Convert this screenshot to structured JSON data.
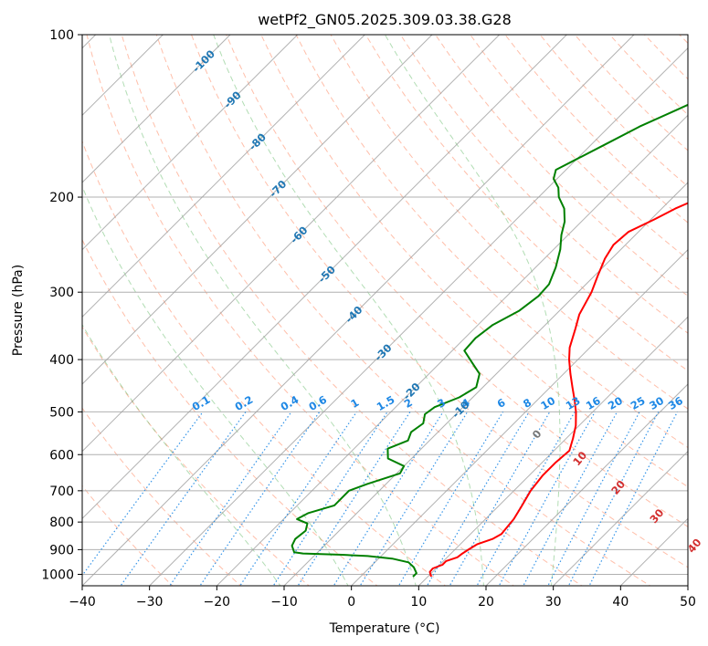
{
  "chart_data": {
    "type": "line",
    "title": "wetPf2_GN05.2025.309.03.38.G28",
    "xlabel": "Temperature (°C)",
    "ylabel": "Pressure (hPa)",
    "xlim": [
      -40,
      50
    ],
    "ylim": [
      1050,
      100
    ],
    "y_scale": "log",
    "grid": true,
    "x_ticks": [
      "−40",
      "−30",
      "−20",
      "−10",
      "0",
      "10",
      "20",
      "30",
      "40",
      "50"
    ],
    "y_ticks": [
      "100",
      "200",
      "300",
      "400",
      "500",
      "600",
      "700",
      "800",
      "900",
      "1000"
    ],
    "colors": {
      "temperature": "#ff0000",
      "dewpoint": "#008000",
      "isotherm_label": "#1f77b4",
      "mixing_ratio": "#1e88e5",
      "dry_adiabat": "#ff8a65",
      "moist_adiabat": "#66bb6a",
      "theta_label": "#d32f2f"
    },
    "series": [
      {
        "key": "temperature",
        "points": [
          [
            10.5,
            1010
          ],
          [
            9.6,
            990
          ],
          [
            9.5,
            975
          ],
          [
            10.4,
            960
          ],
          [
            10.4,
            945
          ],
          [
            11.5,
            930
          ],
          [
            11.7,
            915
          ],
          [
            12.0,
            900
          ],
          [
            12.5,
            880
          ],
          [
            14.0,
            860
          ],
          [
            14.6,
            842
          ],
          [
            14.4,
            815
          ],
          [
            14.2,
            790
          ],
          [
            13.5,
            750
          ],
          [
            12.5,
            700
          ],
          [
            12.0,
            655
          ],
          [
            12.0,
            620
          ],
          [
            12.3,
            590
          ],
          [
            11.0,
            560
          ],
          [
            9.5,
            530
          ],
          [
            7.5,
            500
          ],
          [
            5.5,
            475
          ],
          [
            3.3,
            450
          ],
          [
            1.0,
            425
          ],
          [
            -1.3,
            400
          ],
          [
            -3.0,
            380
          ],
          [
            -5.0,
            350
          ],
          [
            -6.5,
            330
          ],
          [
            -8.0,
            300
          ],
          [
            -9.5,
            280
          ],
          [
            -11.0,
            260
          ],
          [
            -11.8,
            245
          ],
          [
            -11.5,
            232
          ],
          [
            -9.5,
            220
          ],
          [
            -8.0,
            210
          ],
          [
            -5.8,
            200
          ],
          [
            -3.5,
            190
          ],
          [
            -2.0,
            182
          ],
          [
            -1.2,
            170
          ],
          [
            -0.3,
            160
          ],
          [
            0.5,
            150
          ],
          [
            2.0,
            137
          ],
          [
            3.8,
            125
          ],
          [
            5.5,
            117
          ],
          [
            6.5,
            110
          ],
          [
            7.5,
            104
          ],
          [
            8.0,
            100
          ]
        ]
      },
      {
        "key": "dewpoint",
        "points": [
          [
            7.8,
            1010
          ],
          [
            7.8,
            995
          ],
          [
            6.5,
            970
          ],
          [
            5.0,
            950
          ],
          [
            2.0,
            935
          ],
          [
            -2.0,
            925
          ],
          [
            -6.0,
            920
          ],
          [
            -12.0,
            915
          ],
          [
            -13.5,
            910
          ],
          [
            -14.8,
            885
          ],
          [
            -15.3,
            860
          ],
          [
            -15.0,
            830
          ],
          [
            -15.8,
            805
          ],
          [
            -18.0,
            790
          ],
          [
            -17.2,
            770
          ],
          [
            -14.5,
            745
          ],
          [
            -14.5,
            720
          ],
          [
            -14.5,
            700
          ],
          [
            -12.8,
            680
          ],
          [
            -9.5,
            650
          ],
          [
            -10.0,
            630
          ],
          [
            -13.5,
            610
          ],
          [
            -15.0,
            585
          ],
          [
            -13.2,
            565
          ],
          [
            -14.0,
            545
          ],
          [
            -13.5,
            525
          ],
          [
            -14.6,
            505
          ],
          [
            -14.2,
            490
          ],
          [
            -12.0,
            470
          ],
          [
            -11.0,
            450
          ],
          [
            -12.5,
            425
          ],
          [
            -15.3,
            405
          ],
          [
            -18.2,
            385
          ],
          [
            -18.4,
            365
          ],
          [
            -17.8,
            345
          ],
          [
            -16.0,
            325
          ],
          [
            -15.3,
            305
          ],
          [
            -15.5,
            290
          ],
          [
            -17.0,
            270
          ],
          [
            -19.0,
            250
          ],
          [
            -21.0,
            235
          ],
          [
            -22.5,
            222
          ],
          [
            -24.5,
            210
          ],
          [
            -27.0,
            200
          ],
          [
            -28.5,
            192
          ],
          [
            -30.5,
            185
          ],
          [
            -31.5,
            178
          ],
          [
            -30.0,
            170
          ],
          [
            -28.0,
            160
          ],
          [
            -25.5,
            148
          ],
          [
            -22.5,
            138
          ],
          [
            -20.0,
            130
          ],
          [
            -17.8,
            122
          ],
          [
            -15.5,
            115
          ],
          [
            -13.0,
            108
          ],
          [
            -11.0,
            102
          ],
          [
            -10.5,
            100
          ]
        ]
      }
    ],
    "isotherms": {
      "values": [
        -100,
        -90,
        -80,
        -70,
        -60,
        -50,
        -40,
        -30,
        -20,
        -10
      ],
      "labels": [
        "-100",
        "-90",
        "-80",
        "-70",
        "-60",
        "-50",
        "-40",
        "-30",
        "-20",
        "-10"
      ]
    },
    "mixing_ratio": {
      "values": [
        0.1,
        0.2,
        0.4,
        0.6,
        1,
        1.5,
        2,
        3,
        4,
        6,
        8,
        10,
        13,
        16,
        20,
        25,
        30,
        36
      ],
      "labels": [
        "0.1",
        "0.2",
        "0.4",
        "0.6",
        "1",
        "1.5",
        "2",
        "3",
        "4",
        "6",
        "8",
        "10",
        "13",
        "16",
        "20",
        "25",
        "30",
        "36"
      ]
    },
    "theta_w": {
      "values": [
        0,
        10,
        20,
        30,
        40
      ],
      "labels": [
        "0",
        "10",
        "20",
        "30",
        "40"
      ]
    }
  }
}
